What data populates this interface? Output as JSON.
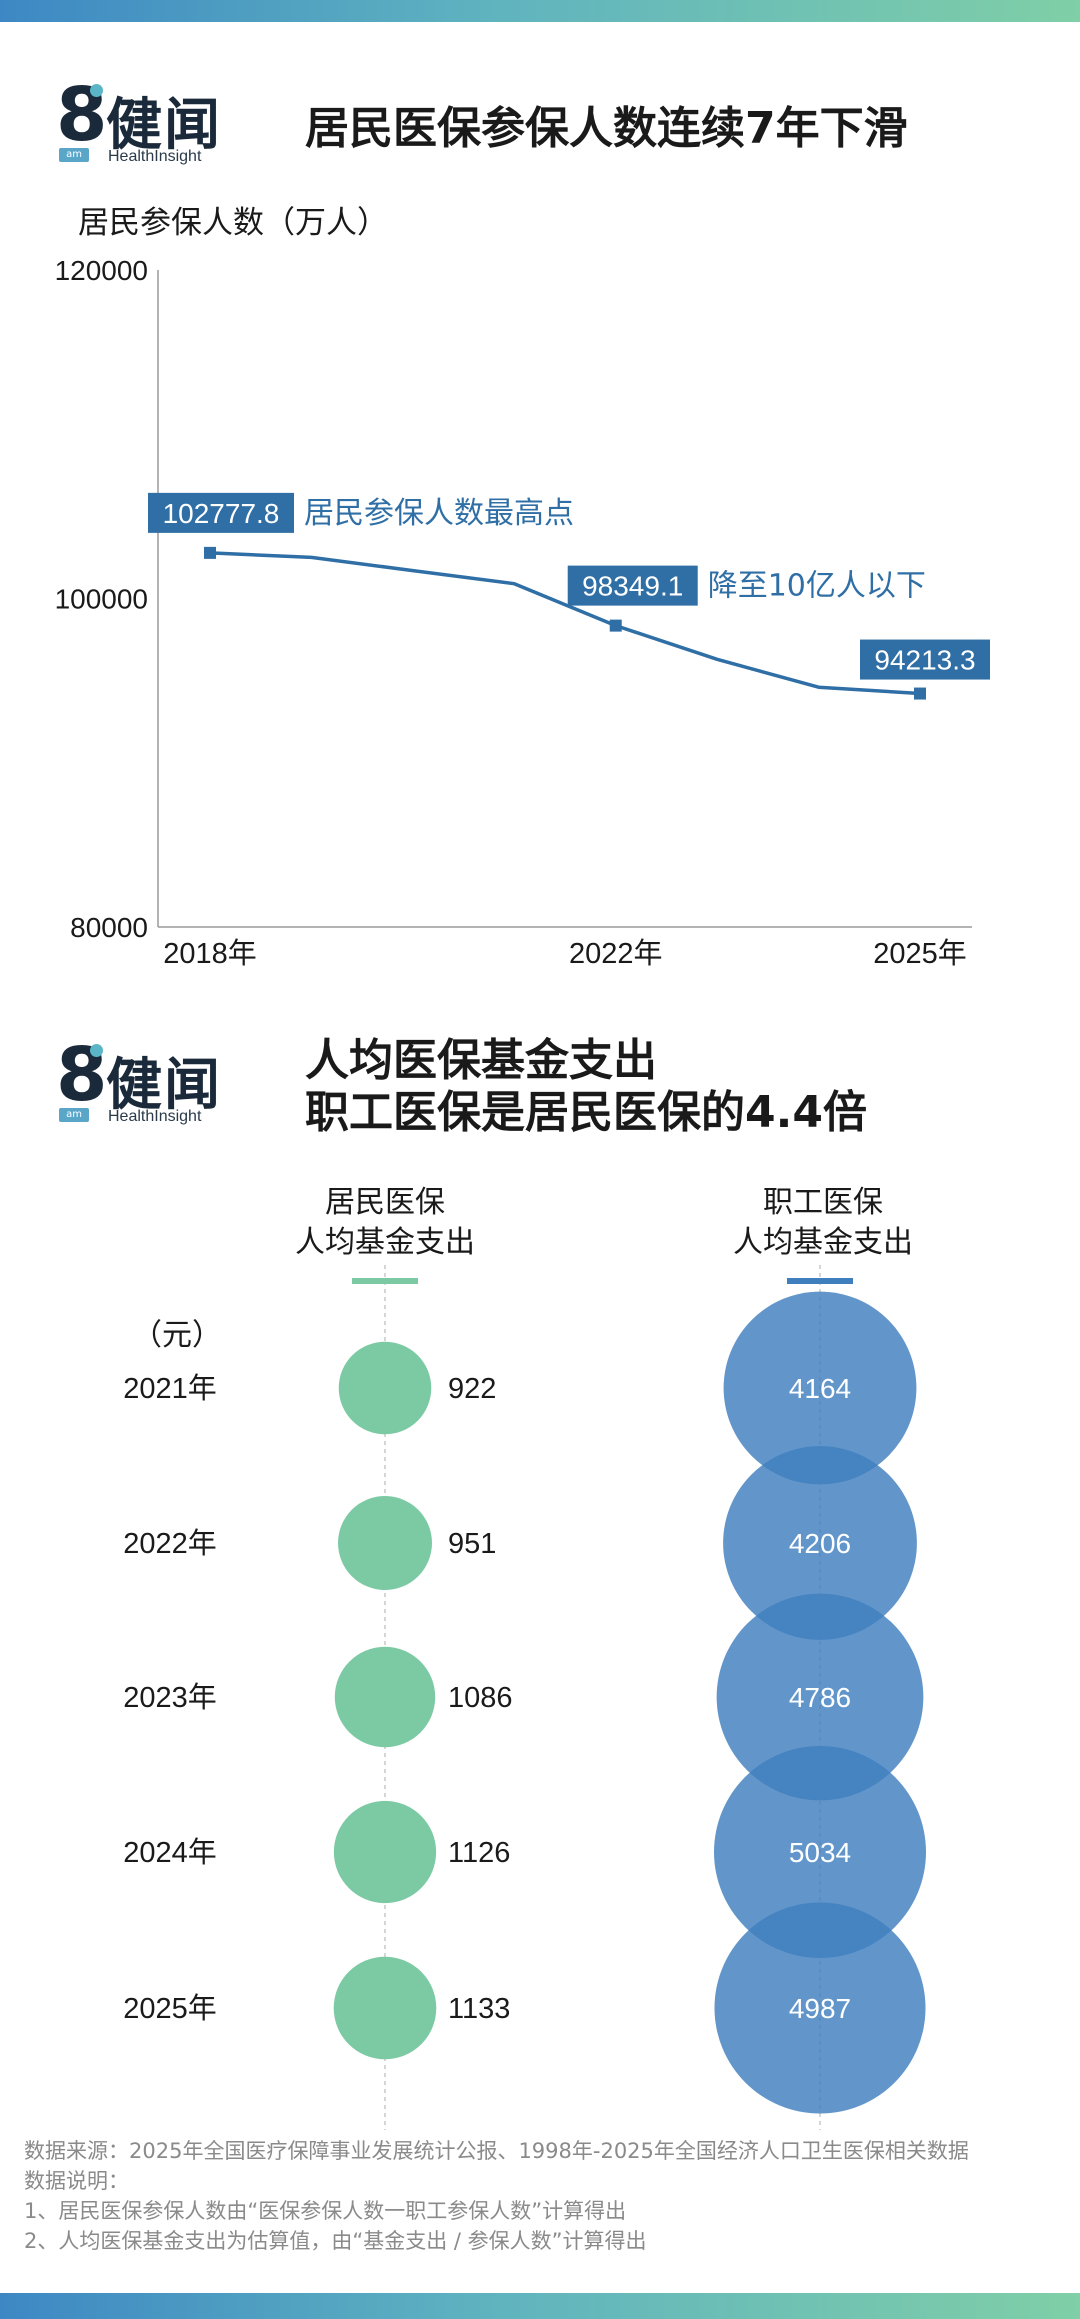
{
  "brand": {
    "name": "健闻",
    "en": "HealthInsight",
    "badge": "am",
    "mark": "8"
  },
  "section1": {
    "title": "居民医保参保人数连续7年下滑",
    "ylabel": "居民参保人数（万人）"
  },
  "section2": {
    "title_line1": "人均医保基金支出",
    "title_line2": "职工医保是居民医保的4.4倍",
    "col1_line1": "居民医保",
    "col1_line2": "人均基金支出",
    "col2_line1": "职工医保",
    "col2_line2": "人均基金支出",
    "unit": "（元）"
  },
  "notes": {
    "source": "数据来源：2025年全国医疗保障事业发展统计公报、1998年-2025年全国经济人口卫生医保相关数据",
    "explain": "数据说明：",
    "note1": "1、居民医保参保人数由“医保参保人数一职工参保人数”计算得出",
    "note2": "2、人均医保基金支出为估算值，由“基金支出 / 参保人数”计算得出"
  },
  "colors": {
    "line": "#2f6fa6",
    "resident": "#7ccaa3",
    "employee": "#3f7fbe",
    "label_bg": "#2f6fa6"
  },
  "chart_data": [
    {
      "type": "line",
      "title": "居民医保参保人数连续7年下滑",
      "ylabel": "居民参保人数（万人）",
      "ylim": [
        80000,
        120000
      ],
      "yticks": [
        "80000",
        "100000",
        "120000"
      ],
      "xticks": [
        "2018年",
        "2022年",
        "2025年"
      ],
      "x": [
        2018,
        2019,
        2020,
        2021,
        2022,
        2023,
        2024,
        2025
      ],
      "series": [
        {
          "values": [
            102777.8,
            102500,
            101700,
            100900,
            98349.1,
            96300,
            94600,
            94213.3
          ]
        }
      ],
      "annotations": [
        {
          "x": 2018,
          "value_label": "102777.8",
          "text": "居民参保人数最高点"
        },
        {
          "x": 2022,
          "value_label": "98349.1",
          "text": "降至10亿人以下"
        },
        {
          "x": 2025,
          "value_label": "94213.3",
          "text": ""
        }
      ]
    },
    {
      "type": "scatter",
      "title": "人均医保基金支出 职工医保是居民医保的4.4倍",
      "unit": "（元）",
      "categories": [
        "2021年",
        "2022年",
        "2023年",
        "2024年",
        "2025年"
      ],
      "series": [
        {
          "name": "居民医保人均基金支出",
          "values": [
            922,
            951,
            1086,
            1126,
            1133
          ]
        },
        {
          "name": "职工医保人均基金支出",
          "values": [
            4164,
            4206,
            4786,
            5034,
            4987
          ]
        }
      ]
    }
  ]
}
